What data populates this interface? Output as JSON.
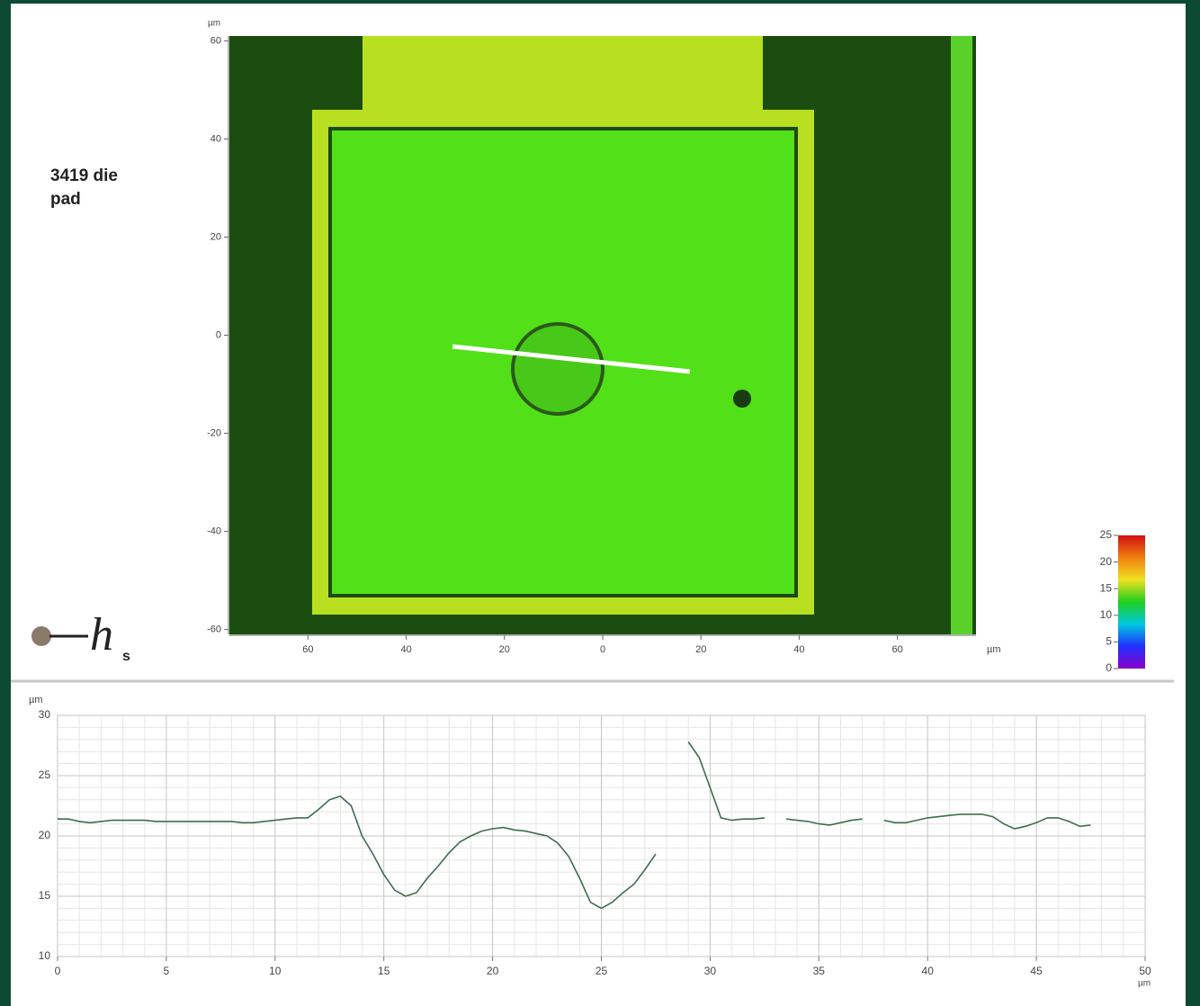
{
  "label": "3419 die pad",
  "logo": {
    "letter": "h",
    "sub": "s"
  },
  "chart_data": [
    {
      "type": "image",
      "x_unit": "µm",
      "y_unit": "µm",
      "xlim": [
        -76,
        76
      ],
      "ylim": [
        -61,
        61
      ],
      "xticks": [
        {
          "value": -60,
          "label": "60"
        },
        {
          "value": -40,
          "label": "40"
        },
        {
          "value": -20,
          "label": "20"
        },
        0,
        20,
        40,
        60
      ],
      "yticks": [
        60,
        40,
        20,
        0,
        -20,
        -40,
        -60
      ]
    },
    {
      "type": "colorbar",
      "ylim": [
        0,
        25
      ],
      "yticks": [
        0,
        5,
        10,
        15,
        20,
        25
      ],
      "colors": [
        "#8a00c8",
        "#2030ff",
        "#00c8e0",
        "#20d020",
        "#f0e020",
        "#f08010",
        "#d01010"
      ]
    },
    {
      "type": "line",
      "x_unit": "µm",
      "y_unit": "µm",
      "x": [
        0,
        0.5,
        1,
        1.5,
        2,
        2.5,
        3,
        3.5,
        4,
        4.5,
        5,
        5.5,
        6,
        6.5,
        7,
        7.5,
        8,
        8.5,
        9,
        9.5,
        10,
        10.5,
        11,
        11.5,
        12,
        12.5,
        13,
        13.5,
        14,
        14.5,
        15,
        15.5,
        16,
        16.5,
        17,
        17.5,
        18,
        18.5,
        19,
        19.5,
        20,
        20.5,
        21,
        21.5,
        22,
        22.5,
        23,
        23.5,
        24,
        24.5,
        25,
        25.5,
        26,
        26.5,
        27,
        27.5,
        28,
        28.5,
        29,
        29.5,
        30,
        30.5,
        31,
        31.5,
        32,
        32.5,
        33,
        33.5,
        34,
        34.5,
        35,
        35.5,
        36,
        36.5,
        37,
        37.5,
        38,
        38.5,
        39,
        39.5,
        40,
        40.5,
        41,
        41.5,
        42,
        42.5,
        43,
        43.5,
        44,
        44.5,
        45,
        45.5,
        46,
        46.5,
        47,
        47.5
      ],
      "series": [
        {
          "color": "#3c6e4c",
          "values": [
            21.4,
            21.4,
            21.2,
            21.1,
            21.2,
            21.3,
            21.3,
            21.3,
            21.3,
            21.2,
            21.2,
            21.2,
            21.2,
            21.2,
            21.2,
            21.2,
            21.2,
            21.1,
            21.1,
            21.2,
            21.3,
            21.4,
            21.5,
            21.5,
            22.2,
            23.0,
            23.3,
            22.5,
            20.0,
            18.5,
            16.8,
            15.5,
            15.0,
            15.3,
            16.5,
            17.5,
            18.6,
            19.5,
            20.0,
            20.4,
            20.6,
            20.7,
            20.5,
            20.4,
            20.2,
            20.0,
            19.4,
            18.3,
            16.5,
            14.5,
            14.0,
            14.5,
            15.3,
            16.0,
            17.2,
            18.5,
            null,
            null,
            27.8,
            26.5,
            24.0,
            21.5,
            21.3,
            21.4,
            21.4,
            21.5,
            null,
            21.4,
            21.3,
            21.2,
            21.0,
            20.9,
            21.1,
            21.3,
            21.4,
            null,
            21.3,
            21.1,
            21.1,
            21.3,
            21.5,
            21.6,
            21.7,
            21.8,
            21.8,
            21.8,
            21.6,
            21.0,
            20.6,
            20.8,
            21.1,
            21.5,
            21.5,
            21.2,
            20.8,
            20.9
          ]
        }
      ],
      "xlim": [
        0,
        50
      ],
      "ylim": [
        10,
        30
      ],
      "xticks": [
        0,
        5,
        10,
        15,
        20,
        25,
        30,
        35,
        40,
        45,
        50
      ],
      "yticks": [
        10,
        15,
        20,
        25,
        30
      ],
      "grid": true
    }
  ]
}
